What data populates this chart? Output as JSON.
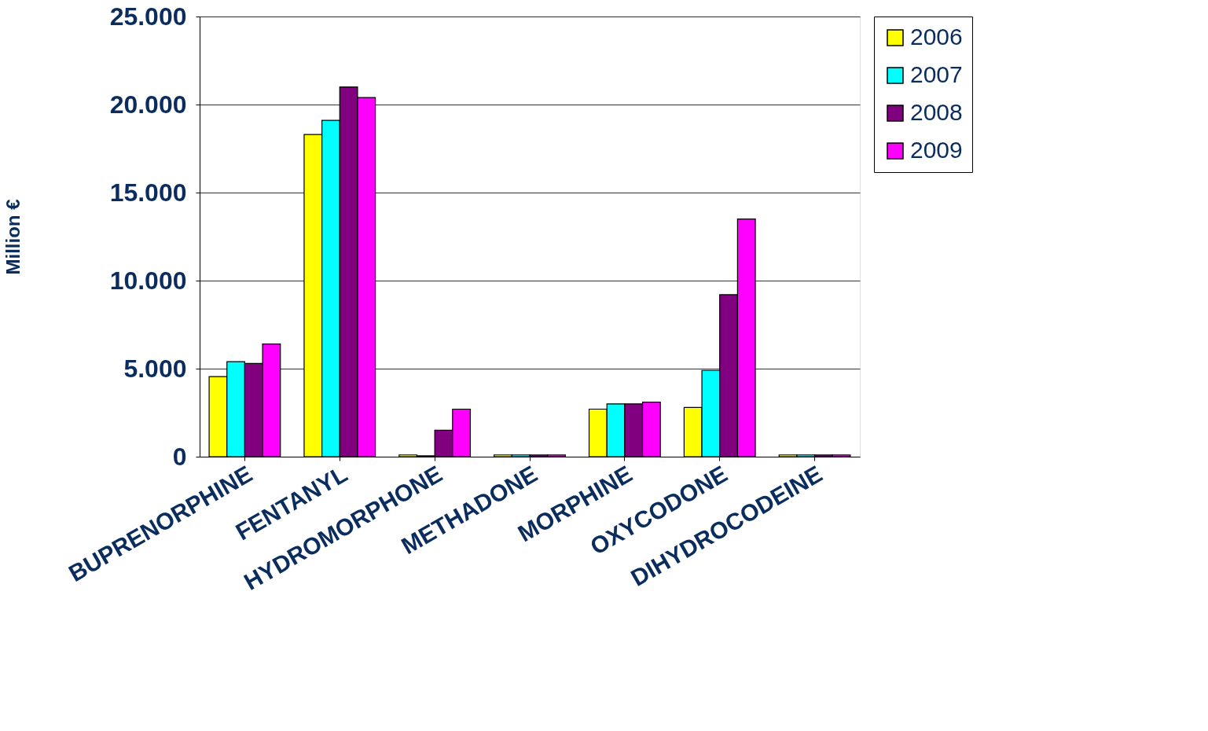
{
  "chart_data": {
    "type": "bar",
    "ylabel": "Million €",
    "categories": [
      "BUPRENORPHINE",
      "FENTANYL",
      "HYDROMORPHONE",
      "METHADONE",
      "MORPHINE",
      "OXYCODONE",
      "DIHYDROCODEINE"
    ],
    "series": [
      {
        "name": "2006",
        "color": "#ffff00",
        "values": [
          4550,
          18300,
          100,
          100,
          2700,
          2800,
          100
        ]
      },
      {
        "name": "2007",
        "color": "#00ffff",
        "values": [
          5400,
          19100,
          50,
          100,
          3000,
          4900,
          100
        ]
      },
      {
        "name": "2008",
        "color": "#800080",
        "values": [
          5300,
          21000,
          1500,
          100,
          3000,
          9200,
          100
        ]
      },
      {
        "name": "2009",
        "color": "#ff00ff",
        "values": [
          6400,
          20400,
          2700,
          100,
          3100,
          13500,
          100
        ]
      }
    ],
    "ylim": [
      0,
      25000
    ],
    "yticks": [
      0,
      {
        "value": 5000,
        "label": "5.000"
      },
      {
        "value": 10000,
        "label": "10.000"
      },
      {
        "value": 15000,
        "label": "15.000"
      },
      {
        "value": 20000,
        "label": "20.000"
      },
      {
        "value": 25000,
        "label": "25.000"
      }
    ],
    "grid": "y",
    "legend": "right"
  }
}
